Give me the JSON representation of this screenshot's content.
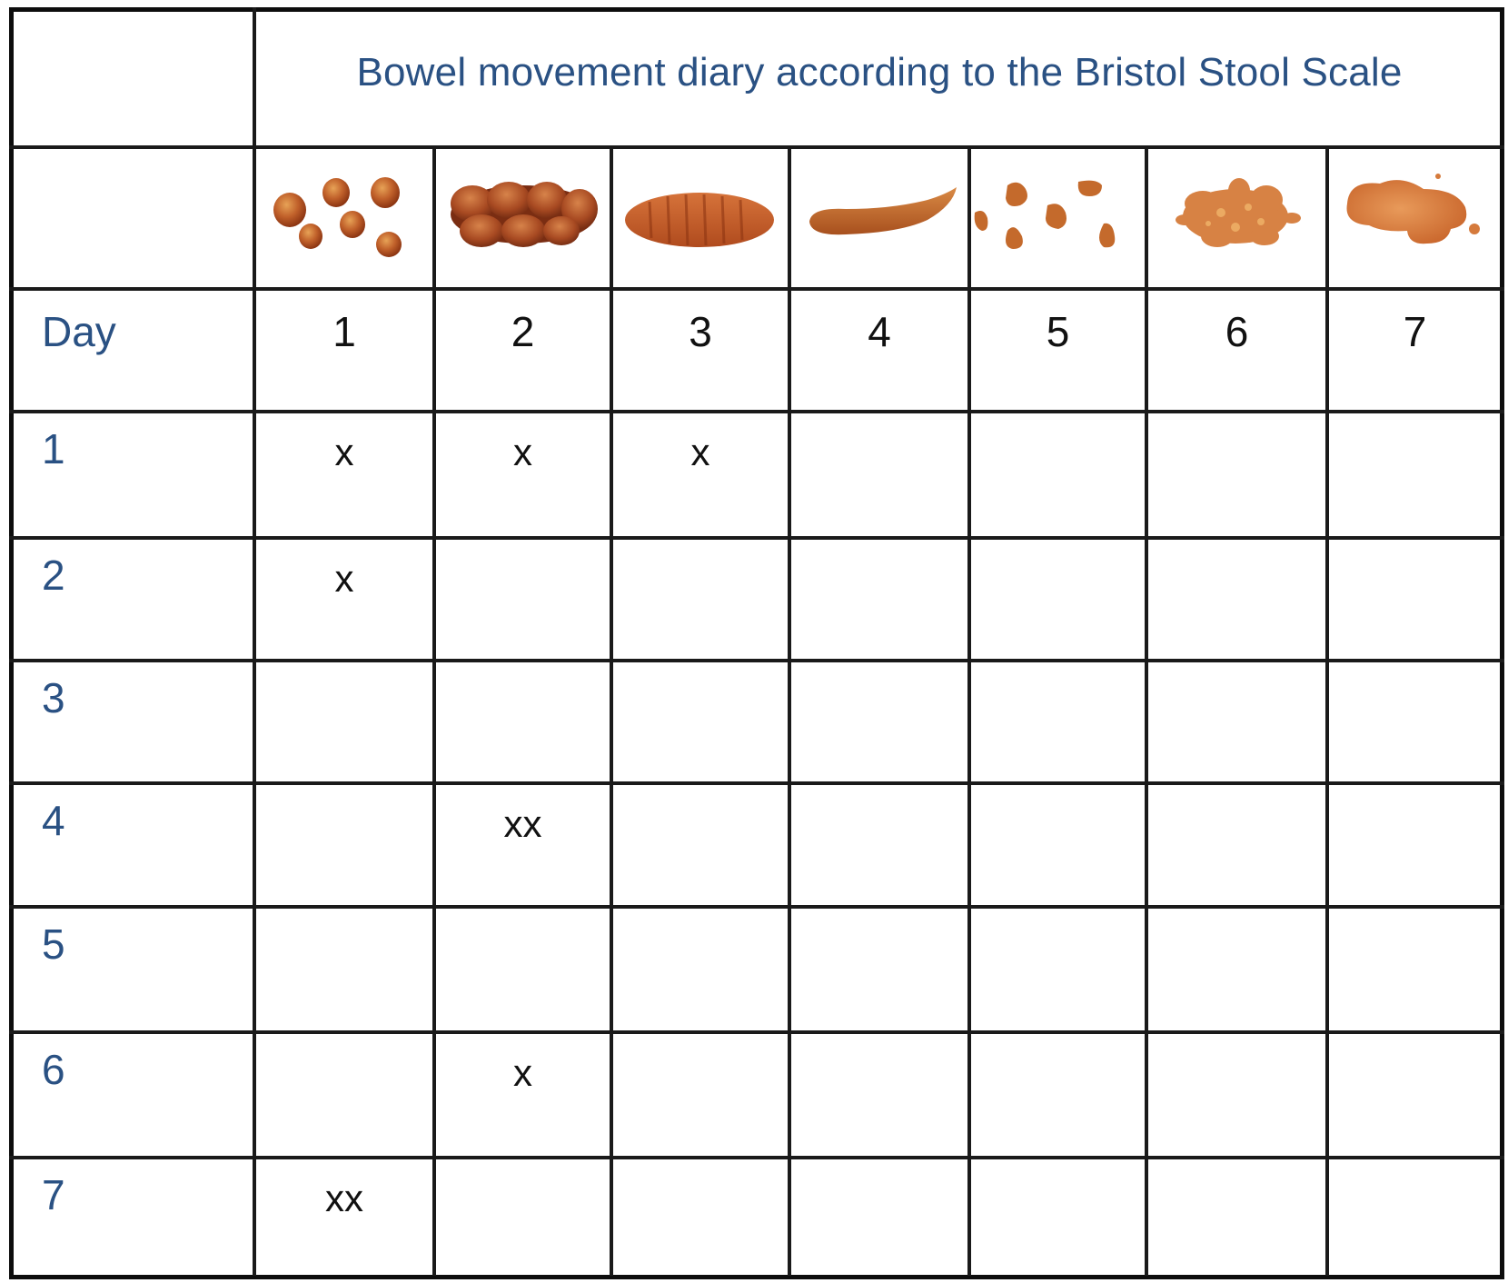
{
  "title": "Bowel movement diary according to the Bristol Stool Scale",
  "header": {
    "row_label": "Day",
    "types": [
      {
        "number": "1",
        "icon": "separate-hard-lumps-icon"
      },
      {
        "number": "2",
        "icon": "lumpy-sausage-icon"
      },
      {
        "number": "3",
        "icon": "cracked-sausage-icon"
      },
      {
        "number": "4",
        "icon": "smooth-snake-icon"
      },
      {
        "number": "5",
        "icon": "soft-blobs-icon"
      },
      {
        "number": "6",
        "icon": "mushy-fluffy-pieces-icon"
      },
      {
        "number": "7",
        "icon": "watery-liquid-icon"
      }
    ]
  },
  "days": [
    {
      "day": "1",
      "cells": [
        "x",
        "x",
        "x",
        "",
        "",
        "",
        ""
      ]
    },
    {
      "day": "2",
      "cells": [
        "x",
        "",
        "",
        "",
        "",
        "",
        ""
      ]
    },
    {
      "day": "3",
      "cells": [
        "",
        "",
        "",
        "",
        "",
        "",
        ""
      ]
    },
    {
      "day": "4",
      "cells": [
        "",
        "xx",
        "",
        "",
        "",
        "",
        ""
      ]
    },
    {
      "day": "5",
      "cells": [
        "",
        "",
        "",
        "",
        "",
        "",
        ""
      ]
    },
    {
      "day": "6",
      "cells": [
        "",
        "x",
        "",
        "",
        "",
        "",
        ""
      ]
    },
    {
      "day": "7",
      "cells": [
        "xx",
        "",
        "",
        "",
        "",
        "",
        ""
      ]
    }
  ],
  "colors": {
    "title_text": "#2a5183",
    "row_label_text": "#2a5183",
    "grid_line": "#1a1a1a",
    "stool_dark": "#9a3f17",
    "stool_mid": "#c0602a",
    "stool_light": "#d98a45"
  }
}
